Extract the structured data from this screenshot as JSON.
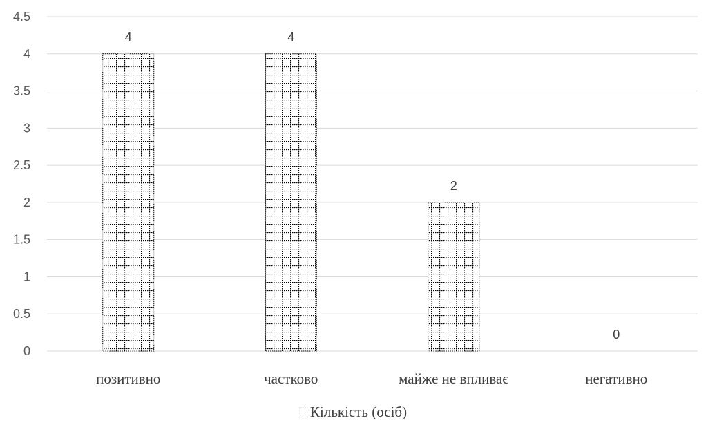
{
  "chart_data": {
    "type": "bar",
    "categories": [
      "позитивно",
      "частково",
      "майже не впливає",
      "негативно"
    ],
    "series": [
      {
        "name": "Кількість (осіб)",
        "values": [
          4,
          4,
          2,
          0
        ]
      }
    ],
    "ylim": [
      0,
      4.5
    ],
    "yticks": [
      "0",
      "0.5",
      "1",
      "1.5",
      "2",
      "2.5",
      "3",
      "3.5",
      "4",
      "4.5"
    ],
    "data_labels": [
      "4",
      "4",
      "2",
      "0"
    ],
    "grid": true,
    "legend": "bottom",
    "colors": {
      "bar_pattern": "#000000",
      "grid": "#d9d9d9",
      "text": "#404040"
    }
  }
}
